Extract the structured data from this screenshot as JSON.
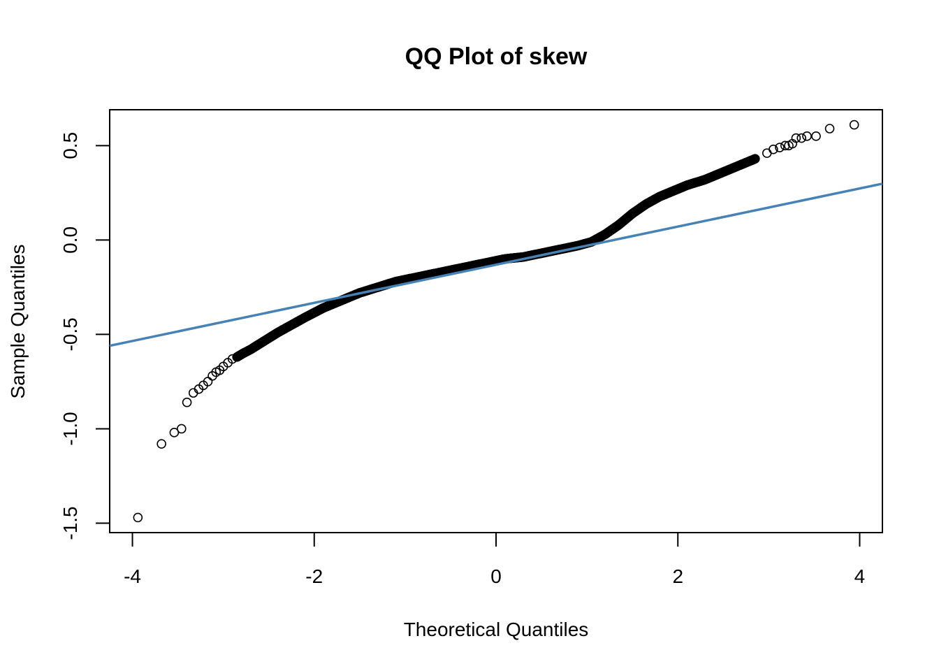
{
  "chart_data": {
    "type": "scatter",
    "title": "QQ Plot of skew",
    "xlabel": "Theoretical Quantiles",
    "ylabel": "Sample Quantiles",
    "xlim": [
      -4.25,
      4.25
    ],
    "ylim": [
      -1.55,
      0.69
    ],
    "x_ticks": [
      -4,
      -2,
      0,
      2,
      4
    ],
    "x_tick_labels": [
      "-4",
      "-2",
      "0",
      "2",
      "4"
    ],
    "y_ticks": [
      -1.5,
      -1.0,
      -0.5,
      0.0,
      0.5
    ],
    "y_tick_labels": [
      "-1.5",
      "-1.0",
      "-0.5",
      "0.0",
      "0.5"
    ],
    "grid": false,
    "marker": "open-circle",
    "point_color": "#000000",
    "line_color": "#4682B4",
    "reference_line": {
      "slope": 0.101,
      "intercept": -0.131
    },
    "points": [
      [
        -3.94,
        -1.47
      ],
      [
        -3.68,
        -1.08
      ],
      [
        -3.54,
        -1.02
      ],
      [
        -3.46,
        -1.0
      ],
      [
        -3.4,
        -0.86
      ],
      [
        -3.33,
        -0.81
      ],
      [
        -3.27,
        -0.79
      ],
      [
        -3.22,
        -0.77
      ],
      [
        -3.17,
        -0.75
      ],
      [
        -3.12,
        -0.72
      ],
      [
        -3.08,
        -0.7
      ],
      [
        -3.04,
        -0.69
      ],
      [
        -3.0,
        -0.67
      ],
      [
        -2.95,
        -0.65
      ],
      [
        -2.9,
        -0.63
      ],
      [
        -2.85,
        -0.62
      ],
      [
        -2.78,
        -0.6
      ],
      [
        -2.7,
        -0.58
      ],
      [
        -2.6,
        -0.55
      ],
      [
        -2.5,
        -0.52
      ],
      [
        -2.4,
        -0.49
      ],
      [
        -2.25,
        -0.45
      ],
      [
        -2.1,
        -0.41
      ],
      [
        -1.9,
        -0.36
      ],
      [
        -1.7,
        -0.32
      ],
      [
        -1.5,
        -0.28
      ],
      [
        -1.3,
        -0.25
      ],
      [
        -1.1,
        -0.22
      ],
      [
        -0.9,
        -0.2
      ],
      [
        -0.7,
        -0.18
      ],
      [
        -0.5,
        -0.16
      ],
      [
        -0.3,
        -0.14
      ],
      [
        -0.1,
        -0.12
      ],
      [
        0.1,
        -0.1
      ],
      [
        0.3,
        -0.09
      ],
      [
        0.5,
        -0.07
      ],
      [
        0.7,
        -0.05
      ],
      [
        0.9,
        -0.03
      ],
      [
        1.05,
        -0.01
      ],
      [
        1.2,
        0.03
      ],
      [
        1.35,
        0.08
      ],
      [
        1.5,
        0.14
      ],
      [
        1.65,
        0.19
      ],
      [
        1.8,
        0.23
      ],
      [
        1.95,
        0.26
      ],
      [
        2.1,
        0.29
      ],
      [
        2.3,
        0.32
      ],
      [
        2.5,
        0.36
      ],
      [
        2.7,
        0.4
      ],
      [
        2.85,
        0.43
      ],
      [
        2.98,
        0.46
      ],
      [
        3.05,
        0.48
      ],
      [
        3.12,
        0.49
      ],
      [
        3.18,
        0.5
      ],
      [
        3.22,
        0.5
      ],
      [
        3.26,
        0.51
      ],
      [
        3.3,
        0.54
      ],
      [
        3.36,
        0.54
      ],
      [
        3.42,
        0.55
      ],
      [
        3.52,
        0.55
      ],
      [
        3.67,
        0.59
      ],
      [
        3.94,
        0.61
      ]
    ]
  }
}
